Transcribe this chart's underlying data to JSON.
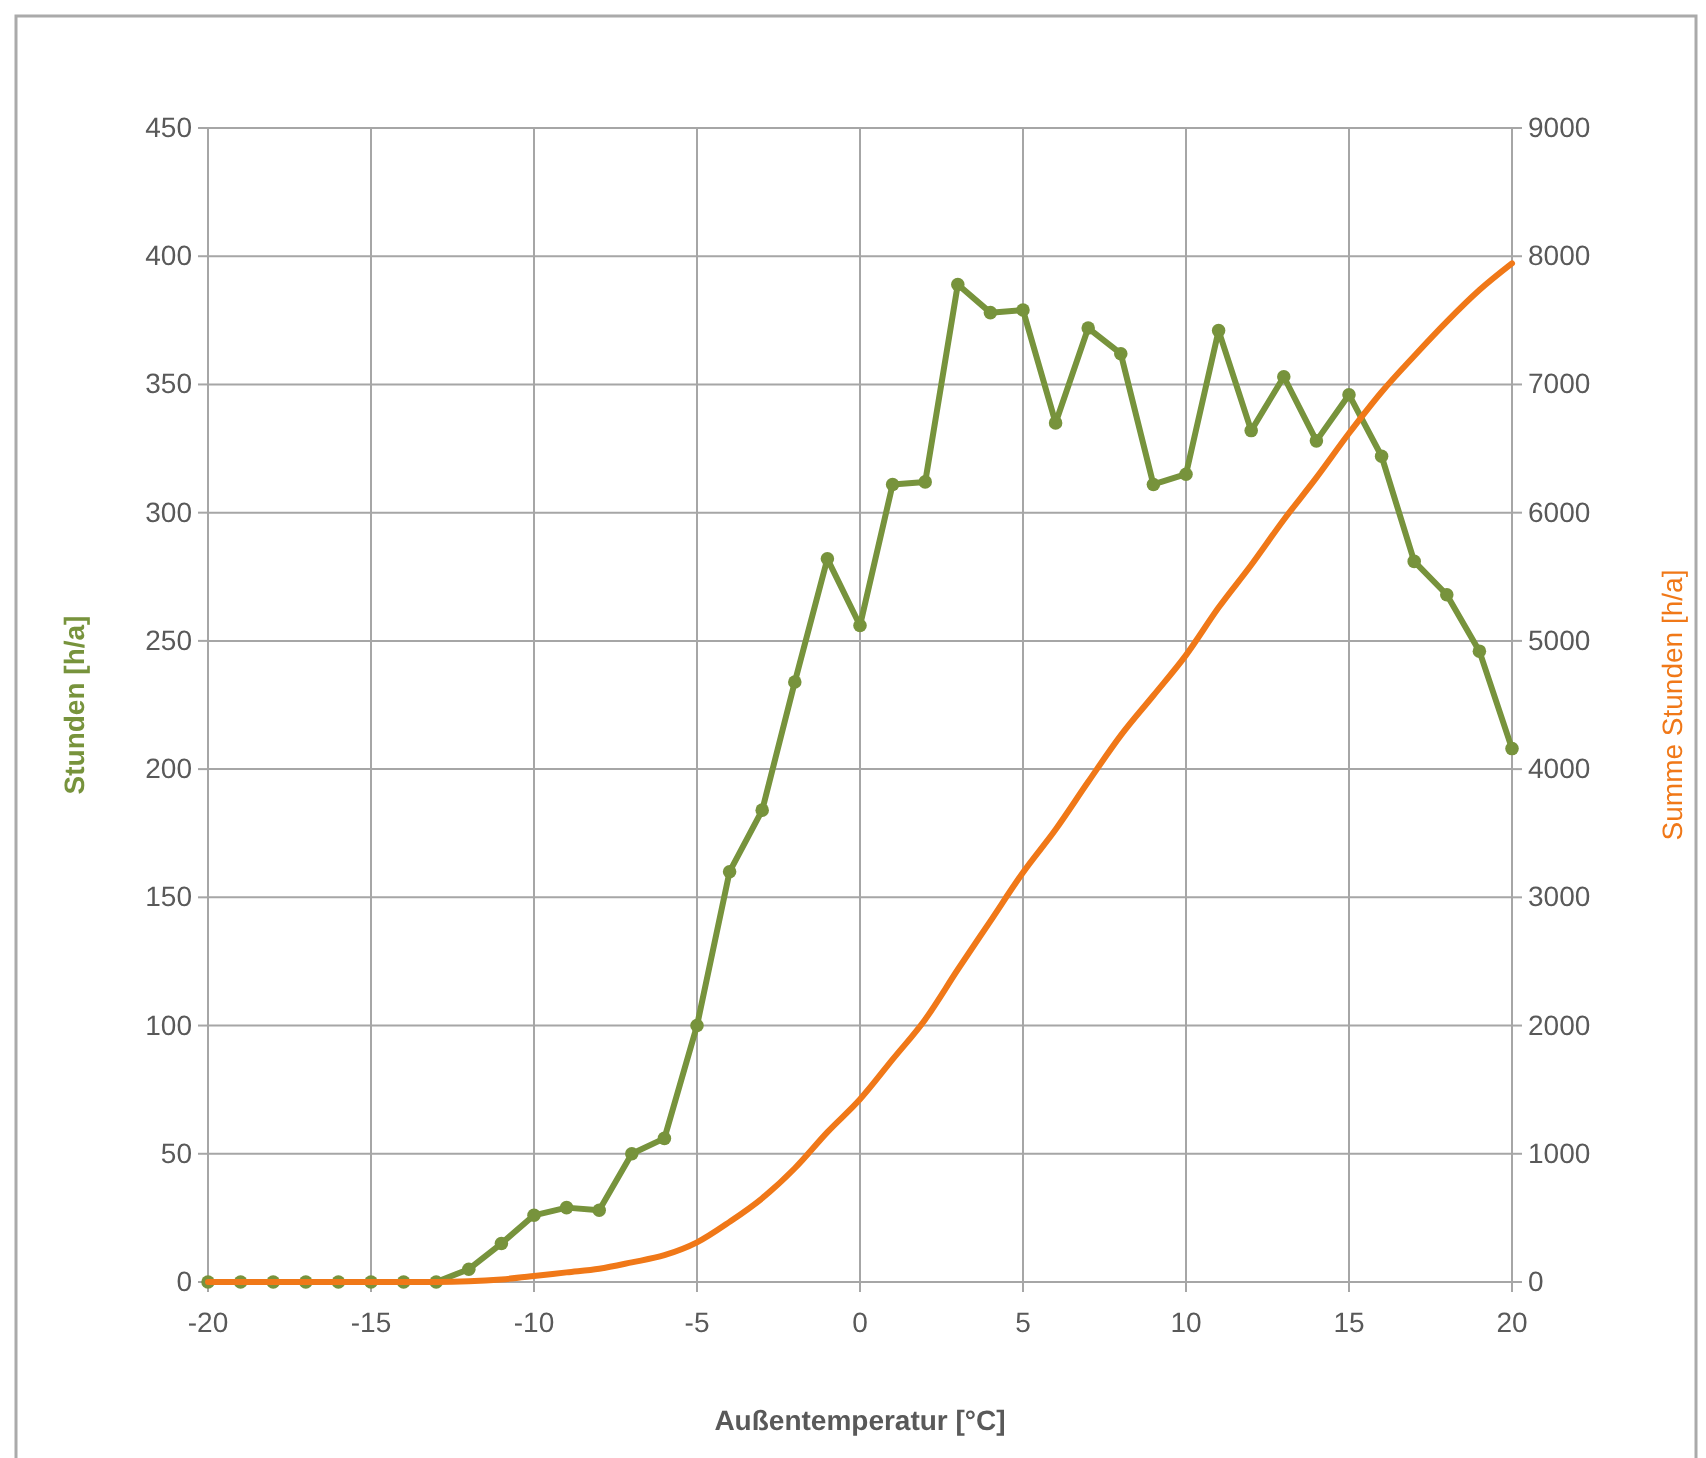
{
  "chart_data": {
    "type": "line",
    "xlabel": "Außentemperatur [°C]",
    "ylabel": "Stunden [h/a]",
    "y2label": "Summe Stunden [h/a]",
    "x": [
      -20,
      -19,
      -18,
      -17,
      -16,
      -15,
      -14,
      -13,
      -12,
      -11,
      -10,
      -9,
      -8,
      -7,
      -6,
      -5,
      -4,
      -3,
      -2,
      -1,
      0,
      1,
      2,
      3,
      4,
      5,
      6,
      7,
      8,
      9,
      10,
      11,
      12,
      13,
      14,
      15,
      16,
      17,
      18,
      19,
      20
    ],
    "series": [
      {
        "color": "#77933c",
        "marker": "circle",
        "values": [
          0,
          0,
          0,
          0,
          0,
          0,
          0,
          0,
          5,
          15,
          26,
          29,
          28,
          50,
          56,
          100,
          160,
          184,
          234,
          282,
          256,
          311,
          312,
          389,
          378,
          379,
          335,
          372,
          362,
          311,
          315,
          371,
          332,
          353,
          328,
          346,
          322,
          281,
          268,
          246,
          208
        ]
      },
      {
        "color": "#f07818",
        "axis": "y2",
        "marker": "none",
        "values": [
          0,
          0,
          0,
          0,
          0,
          0,
          0,
          0,
          5,
          20,
          46,
          75,
          103,
          153,
          209,
          309,
          469,
          653,
          887,
          1169,
          1425,
          1736,
          2048,
          2437,
          2815,
          3194,
          3529,
          3901,
          4263,
          4574,
          4889,
          5260,
          5592,
          5945,
          6273,
          6619,
          6941,
          7222,
          7490,
          7736,
          7944
        ]
      }
    ],
    "xlim": [
      -20,
      20
    ],
    "xticks": [
      -20,
      -15,
      -10,
      -5,
      0,
      5,
      10,
      15,
      20
    ],
    "ylim": [
      0,
      450
    ],
    "yticks": [
      0,
      50,
      100,
      150,
      200,
      250,
      300,
      350,
      400,
      450
    ],
    "y2lim": [
      0,
      9000
    ],
    "y2ticks": [
      0,
      1000,
      2000,
      3000,
      4000,
      5000,
      6000,
      7000,
      8000,
      9000
    ],
    "grid": true
  }
}
